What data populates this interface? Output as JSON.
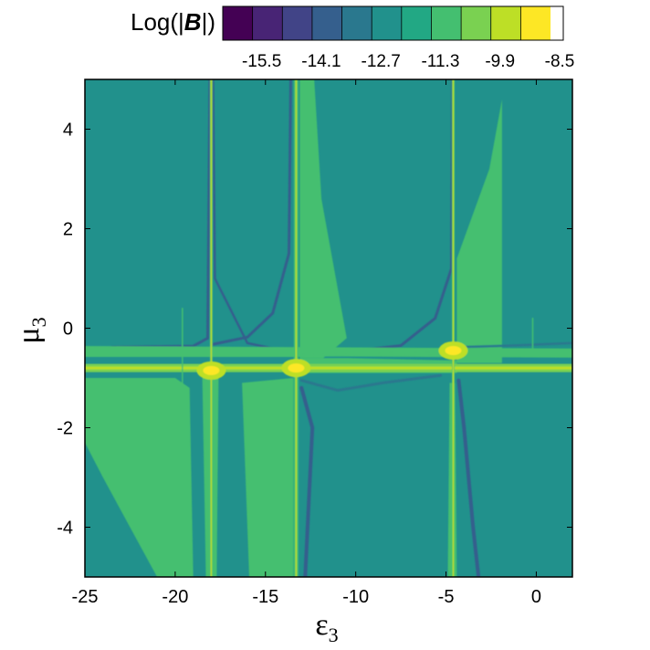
{
  "chart_data": {
    "type": "heatmap",
    "title": "",
    "colorbar": {
      "title_prefix": "Log(|",
      "title_symbol": "B",
      "title_suffix": "|)",
      "tick_labels": [
        "-15.5",
        "-14.1",
        "-12.7",
        "-11.3",
        "-9.9",
        "-8.5"
      ],
      "tick_values": [
        -15.5,
        -14.1,
        -12.7,
        -11.3,
        -9.9,
        -8.5
      ],
      "levels": [
        -16.2,
        -15.5,
        -14.8,
        -14.1,
        -13.4,
        -12.7,
        -12.0,
        -11.3,
        -10.6,
        -9.9,
        -9.2,
        -8.5,
        -8.2
      ],
      "colors": [
        "#440154",
        "#482475",
        "#414487",
        "#355f8d",
        "#2a788e",
        "#21918c",
        "#22a884",
        "#44bf70",
        "#7ad151",
        "#bddf26",
        "#fde725"
      ]
    },
    "xlabel": "ε",
    "xlabel_sub": "3",
    "ylabel": "μ",
    "ylabel_sub": "3",
    "xlim": [
      -25,
      2
    ],
    "ylim": [
      -5,
      5
    ],
    "x_ticks": [
      -25,
      -20,
      -15,
      -10,
      -5,
      0
    ],
    "y_ticks": [
      -4,
      -2,
      0,
      2,
      4
    ],
    "background_level": -12.35,
    "resonances_x": [
      -18.0,
      -13.3,
      -4.6
    ],
    "resonances_y": [
      -0.85,
      -0.8,
      -0.45
    ],
    "horizontal_band_y": -0.8
  }
}
